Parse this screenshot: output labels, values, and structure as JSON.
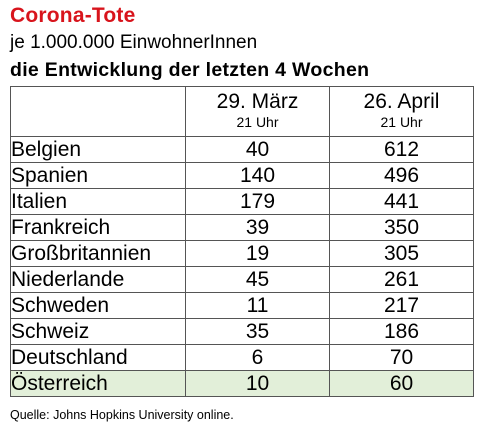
{
  "header": {
    "title": "Corona-Tote",
    "subtitle": "je 1.000.000 EinwohnerInnen",
    "subtitle2": "die Entwicklung der letzten 4 Wochen"
  },
  "columns": [
    {
      "date": "29. März",
      "time": "21 Uhr"
    },
    {
      "date": "26. April",
      "time": "21 Uhr"
    }
  ],
  "chart_data": {
    "type": "table",
    "title": "Corona-Tote",
    "subtitle": "je 1.000.000 EinwohnerInnen",
    "categories": [
      "Belgien",
      "Spanien",
      "Italien",
      "Frankreich",
      "Großbritannien",
      "Niederlande",
      "Schweden",
      "Schweiz",
      "Deutschland",
      "Österreich"
    ],
    "series": [
      {
        "name": "29. März",
        "values": [
          "40",
          "140",
          "179",
          "39",
          "19",
          "45",
          "11",
          "35",
          "6",
          "10"
        ]
      },
      {
        "name": "26. April",
        "values": [
          "612",
          "496",
          "441",
          "350",
          "305",
          "261",
          "217",
          "186",
          "70",
          "60"
        ]
      }
    ],
    "highlight_row": "Österreich",
    "highlight_color": "#e2efd9"
  },
  "footer": {
    "source": "Quelle: Johns Hopkins University online."
  },
  "colors": {
    "title": "#d8141c",
    "highlight": "#e2efd9",
    "border": "#555555"
  }
}
